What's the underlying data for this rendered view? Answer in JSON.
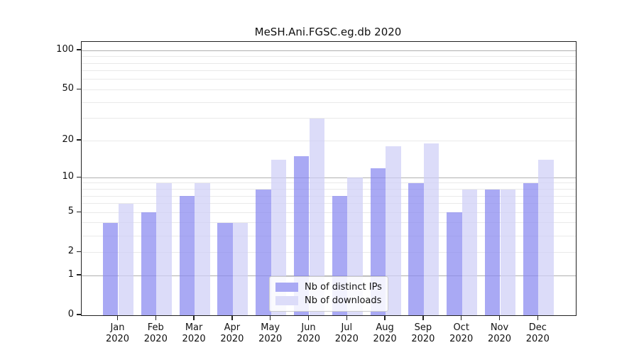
{
  "chart_data": {
    "type": "bar",
    "title": "MeSH.Ani.FGSC.eg.db 2020",
    "categories": [
      "Jan",
      "Feb",
      "Mar",
      "Apr",
      "May",
      "Jun",
      "Jul",
      "Aug",
      "Sep",
      "Oct",
      "Nov",
      "Dec"
    ],
    "xtick_line2": "2020",
    "series": [
      {
        "name": "Nb of distinct IPs",
        "color": "#a9a9f4",
        "fill": "rgba(136,136,240,0.72)",
        "values": [
          4,
          5,
          7,
          4,
          8,
          15,
          7,
          12,
          9,
          5,
          8,
          9
        ]
      },
      {
        "name": "Nb of downloads",
        "color": "#dcdcf9",
        "fill": "rgba(206,206,247,0.72)",
        "values": [
          6,
          9,
          9,
          4,
          14,
          30,
          10,
          18,
          19,
          8,
          8,
          14
        ]
      }
    ],
    "yscale": "log1p",
    "yticks": [
      0,
      1,
      2,
      5,
      10,
      20,
      50,
      100
    ],
    "minor_yticks": [
      3,
      4,
      6,
      7,
      8,
      9,
      30,
      40,
      60,
      70,
      80,
      90
    ],
    "ylim": [
      0,
      116
    ],
    "grid": true,
    "legend_position": "lower-center",
    "colors": {
      "grid_major": "#b0b0b0",
      "grid_minor": "#e9e9e9",
      "axis": "#222222",
      "text": "#111111"
    }
  }
}
